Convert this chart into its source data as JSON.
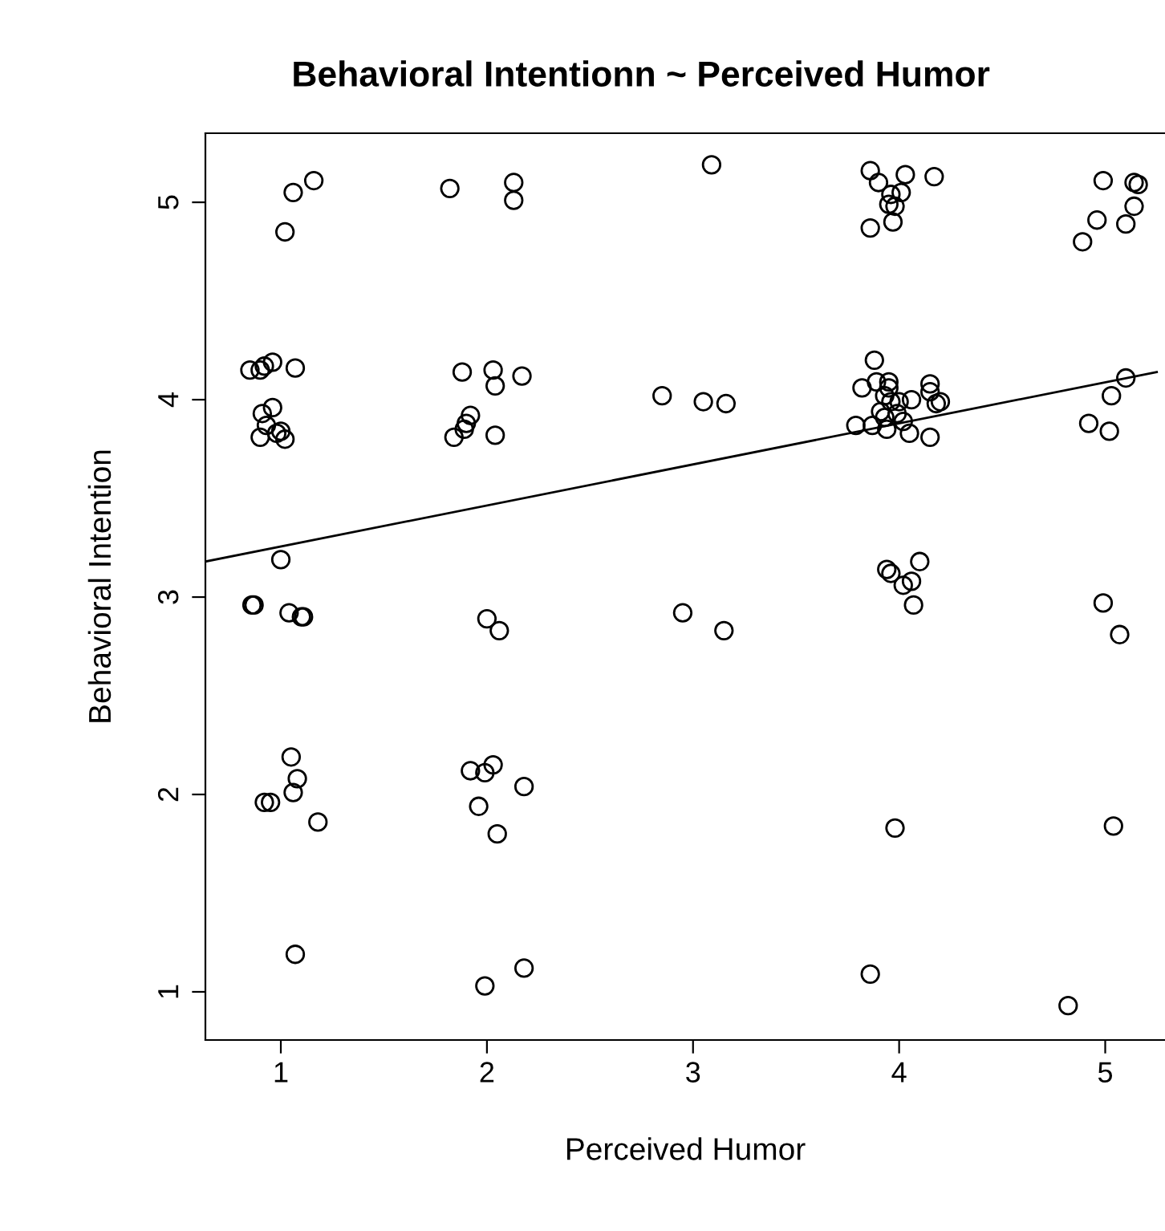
{
  "chart_data": {
    "type": "scatter",
    "title": "Behavioral Intentionn ~ Perceived Humor",
    "xlabel": "Perceived Humor",
    "ylabel": "Behavioral Intention",
    "xlim": [
      0.634,
      5.29
    ],
    "ylim": [
      0.756,
      5.35
    ],
    "xticks": [
      1,
      2,
      3,
      4,
      5
    ],
    "yticks": [
      1,
      2,
      3,
      4,
      5
    ],
    "marker": "circle",
    "grid": false,
    "legend": false,
    "series": [
      {
        "color": "#000000",
        "x": [
          1.16,
          1.06,
          1.02,
          0.85,
          0.9,
          0.92,
          0.96,
          1.07,
          0.91,
          0.96,
          0.93,
          0.9,
          0.98,
          1.02,
          1.0,
          1.0,
          0.86,
          0.87,
          1.04,
          1.1,
          1.11,
          1.05,
          1.08,
          1.06,
          0.92,
          0.95,
          1.18,
          1.07,
          1.82,
          2.13,
          2.13,
          1.88,
          2.03,
          2.04,
          2.17,
          1.84,
          1.89,
          1.9,
          1.92,
          2.04,
          2.0,
          2.06,
          1.92,
          2.03,
          1.99,
          1.96,
          2.18,
          2.05,
          1.99,
          2.18,
          3.09,
          2.85,
          3.05,
          3.16,
          2.95,
          3.15,
          3.86,
          3.9,
          4.03,
          4.17,
          3.96,
          4.01,
          3.95,
          3.98,
          3.86,
          3.97,
          3.88,
          3.82,
          3.89,
          3.95,
          3.95,
          3.93,
          3.96,
          4.0,
          4.06,
          4.15,
          4.15,
          4.18,
          4.2,
          3.79,
          3.87,
          3.94,
          4.05,
          4.15,
          3.99,
          4.02,
          3.91,
          3.93,
          3.94,
          3.96,
          4.1,
          4.06,
          4.02,
          4.07,
          3.98,
          3.86,
          4.99,
          5.14,
          5.16,
          5.14,
          4.96,
          5.1,
          4.89,
          5.1,
          5.03,
          4.92,
          5.02,
          4.99,
          5.07,
          5.04,
          4.82
        ],
        "values": [
          5.11,
          5.05,
          4.85,
          4.15,
          4.15,
          4.17,
          4.19,
          4.16,
          3.93,
          3.96,
          3.87,
          3.81,
          3.83,
          3.8,
          3.84,
          3.19,
          2.96,
          2.96,
          2.92,
          2.9,
          2.9,
          2.19,
          2.08,
          2.01,
          1.96,
          1.96,
          1.86,
          1.19,
          5.07,
          5.1,
          5.01,
          4.14,
          4.15,
          4.07,
          4.12,
          3.81,
          3.85,
          3.88,
          3.92,
          3.82,
          2.89,
          2.83,
          2.12,
          2.15,
          2.11,
          1.94,
          2.04,
          1.8,
          1.03,
          1.12,
          5.19,
          4.02,
          3.99,
          3.98,
          2.92,
          2.83,
          5.16,
          5.1,
          5.14,
          5.13,
          5.04,
          5.05,
          4.99,
          4.98,
          4.87,
          4.9,
          4.2,
          4.06,
          4.09,
          4.09,
          4.06,
          4.02,
          3.99,
          3.99,
          4.0,
          4.08,
          4.04,
          3.98,
          3.99,
          3.87,
          3.87,
          3.85,
          3.83,
          3.81,
          3.93,
          3.89,
          3.94,
          3.91,
          3.14,
          3.12,
          3.18,
          3.08,
          3.06,
          2.96,
          1.83,
          1.09,
          5.11,
          5.1,
          5.09,
          4.98,
          4.91,
          4.89,
          4.8,
          4.11,
          4.02,
          3.88,
          3.84,
          2.97,
          2.81,
          1.84,
          0.93
        ]
      },
      {
        "type": "line",
        "color": "#000000",
        "marker": "none",
        "line_style": "solid",
        "x": [
          0.634,
          5.25
        ],
        "values": [
          3.18,
          4.14
        ]
      }
    ]
  }
}
